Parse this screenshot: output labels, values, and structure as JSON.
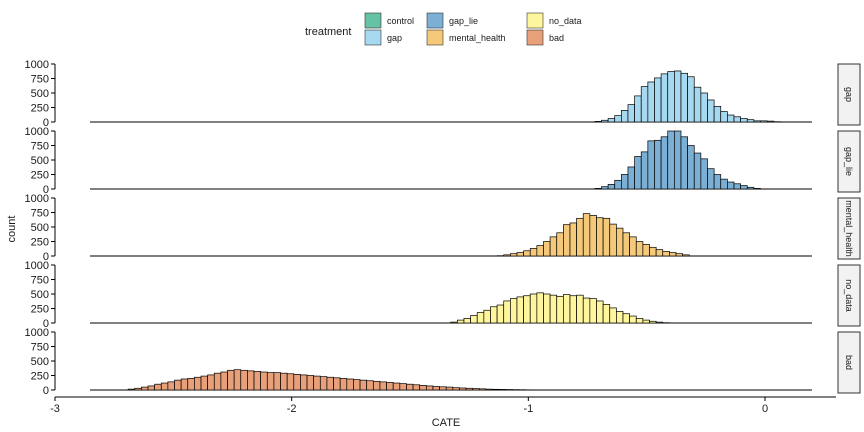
{
  "chart_data": {
    "type": "bar",
    "subtype": "faceted-histogram",
    "title": "",
    "xlabel": "CATE",
    "ylabel": "count",
    "xlim": [
      -3,
      0.3
    ],
    "ylim": [
      0,
      1000
    ],
    "x_ticks": [
      "-3",
      "-2",
      "-1",
      "0"
    ],
    "y_ticks": [
      "0",
      "250",
      "500",
      "750",
      "1000"
    ],
    "grid": false,
    "legend": {
      "title": "treatment",
      "placement": "top",
      "entries": [
        {
          "label": "control",
          "color": "#66c2a5"
        },
        {
          "label": "gap",
          "color": "#a6d8f0"
        },
        {
          "label": "gap_lie",
          "color": "#7bafd4"
        },
        {
          "label": "mental_health",
          "color": "#f5c97a"
        },
        {
          "label": "no_data",
          "color": "#fff59d"
        },
        {
          "label": "bad",
          "color": "#e8a07a"
        }
      ]
    },
    "bin_width": 0.028,
    "facets": [
      {
        "label": "gap",
        "color": "#a6d8f0",
        "series": [
          {
            "x": -0.705,
            "y": 10
          },
          {
            "x": -0.677,
            "y": 30
          },
          {
            "x": -0.649,
            "y": 60
          },
          {
            "x": -0.621,
            "y": 110
          },
          {
            "x": -0.593,
            "y": 200
          },
          {
            "x": -0.565,
            "y": 300
          },
          {
            "x": -0.537,
            "y": 450
          },
          {
            "x": -0.509,
            "y": 610
          },
          {
            "x": -0.481,
            "y": 690
          },
          {
            "x": -0.453,
            "y": 760
          },
          {
            "x": -0.425,
            "y": 830
          },
          {
            "x": -0.397,
            "y": 870
          },
          {
            "x": -0.369,
            "y": 880
          },
          {
            "x": -0.341,
            "y": 840
          },
          {
            "x": -0.313,
            "y": 780
          },
          {
            "x": -0.285,
            "y": 600
          },
          {
            "x": -0.257,
            "y": 500
          },
          {
            "x": -0.229,
            "y": 380
          },
          {
            "x": -0.201,
            "y": 270
          },
          {
            "x": -0.173,
            "y": 180
          },
          {
            "x": -0.145,
            "y": 120
          },
          {
            "x": -0.117,
            "y": 90
          },
          {
            "x": -0.089,
            "y": 60
          },
          {
            "x": -0.061,
            "y": 40
          },
          {
            "x": -0.033,
            "y": 20
          },
          {
            "x": -0.005,
            "y": 20
          },
          {
            "x": 0.023,
            "y": 15
          },
          {
            "x": 0.051,
            "y": 5
          }
        ]
      },
      {
        "label": "gap_lie",
        "color": "#7bafd4",
        "series": [
          {
            "x": -0.705,
            "y": 10
          },
          {
            "x": -0.677,
            "y": 40
          },
          {
            "x": -0.649,
            "y": 80
          },
          {
            "x": -0.621,
            "y": 150
          },
          {
            "x": -0.593,
            "y": 250
          },
          {
            "x": -0.565,
            "y": 380
          },
          {
            "x": -0.537,
            "y": 560
          },
          {
            "x": -0.509,
            "y": 640
          },
          {
            "x": -0.481,
            "y": 830
          },
          {
            "x": -0.453,
            "y": 840
          },
          {
            "x": -0.425,
            "y": 900
          },
          {
            "x": -0.397,
            "y": 1000
          },
          {
            "x": -0.369,
            "y": 1000
          },
          {
            "x": -0.341,
            "y": 900
          },
          {
            "x": -0.313,
            "y": 750
          },
          {
            "x": -0.285,
            "y": 620
          },
          {
            "x": -0.257,
            "y": 520
          },
          {
            "x": -0.229,
            "y": 350
          },
          {
            "x": -0.201,
            "y": 250
          },
          {
            "x": -0.173,
            "y": 170
          },
          {
            "x": -0.145,
            "y": 120
          },
          {
            "x": -0.117,
            "y": 90
          },
          {
            "x": -0.089,
            "y": 60
          },
          {
            "x": -0.061,
            "y": 30
          },
          {
            "x": -0.033,
            "y": 10
          }
        ]
      },
      {
        "label": "mental_health",
        "color": "#f5c97a",
        "series": [
          {
            "x": -1.118,
            "y": 5
          },
          {
            "x": -1.09,
            "y": 20
          },
          {
            "x": -1.062,
            "y": 40
          },
          {
            "x": -1.034,
            "y": 60
          },
          {
            "x": -1.006,
            "y": 90
          },
          {
            "x": -0.978,
            "y": 130
          },
          {
            "x": -0.95,
            "y": 180
          },
          {
            "x": -0.922,
            "y": 250
          },
          {
            "x": -0.894,
            "y": 330
          },
          {
            "x": -0.866,
            "y": 400
          },
          {
            "x": -0.838,
            "y": 540
          },
          {
            "x": -0.81,
            "y": 570
          },
          {
            "x": -0.782,
            "y": 650
          },
          {
            "x": -0.754,
            "y": 730
          },
          {
            "x": -0.726,
            "y": 700
          },
          {
            "x": -0.698,
            "y": 660
          },
          {
            "x": -0.67,
            "y": 650
          },
          {
            "x": -0.642,
            "y": 550
          },
          {
            "x": -0.614,
            "y": 480
          },
          {
            "x": -0.586,
            "y": 400
          },
          {
            "x": -0.558,
            "y": 330
          },
          {
            "x": -0.53,
            "y": 250
          },
          {
            "x": -0.502,
            "y": 200
          },
          {
            "x": -0.474,
            "y": 150
          },
          {
            "x": -0.446,
            "y": 110
          },
          {
            "x": -0.418,
            "y": 80
          },
          {
            "x": -0.39,
            "y": 60
          },
          {
            "x": -0.362,
            "y": 40
          },
          {
            "x": -0.334,
            "y": 20
          }
        ]
      },
      {
        "label": "no_data",
        "color": "#fff59d",
        "series": [
          {
            "x": -1.314,
            "y": 15
          },
          {
            "x": -1.286,
            "y": 50
          },
          {
            "x": -1.258,
            "y": 80
          },
          {
            "x": -1.23,
            "y": 130
          },
          {
            "x": -1.202,
            "y": 180
          },
          {
            "x": -1.174,
            "y": 220
          },
          {
            "x": -1.146,
            "y": 280
          },
          {
            "x": -1.118,
            "y": 310
          },
          {
            "x": -1.09,
            "y": 380
          },
          {
            "x": -1.062,
            "y": 420
          },
          {
            "x": -1.034,
            "y": 450
          },
          {
            "x": -1.006,
            "y": 470
          },
          {
            "x": -0.978,
            "y": 500
          },
          {
            "x": -0.95,
            "y": 520
          },
          {
            "x": -0.922,
            "y": 500
          },
          {
            "x": -0.894,
            "y": 480
          },
          {
            "x": -0.866,
            "y": 460
          },
          {
            "x": -0.838,
            "y": 490
          },
          {
            "x": -0.81,
            "y": 470
          },
          {
            "x": -0.782,
            "y": 480
          },
          {
            "x": -0.754,
            "y": 430
          },
          {
            "x": -0.726,
            "y": 420
          },
          {
            "x": -0.698,
            "y": 380
          },
          {
            "x": -0.67,
            "y": 320
          },
          {
            "x": -0.642,
            "y": 260
          },
          {
            "x": -0.614,
            "y": 200
          },
          {
            "x": -0.586,
            "y": 160
          },
          {
            "x": -0.558,
            "y": 120
          },
          {
            "x": -0.53,
            "y": 80
          },
          {
            "x": -0.502,
            "y": 50
          },
          {
            "x": -0.474,
            "y": 30
          },
          {
            "x": -0.446,
            "y": 15
          },
          {
            "x": -0.418,
            "y": 5
          }
        ]
      },
      {
        "label": "bad",
        "color": "#e8a07a",
        "series": [
          {
            "x": -2.677,
            "y": 15
          },
          {
            "x": -2.649,
            "y": 30
          },
          {
            "x": -2.621,
            "y": 50
          },
          {
            "x": -2.593,
            "y": 70
          },
          {
            "x": -2.565,
            "y": 100
          },
          {
            "x": -2.537,
            "y": 120
          },
          {
            "x": -2.509,
            "y": 140
          },
          {
            "x": -2.481,
            "y": 170
          },
          {
            "x": -2.453,
            "y": 190
          },
          {
            "x": -2.425,
            "y": 200
          },
          {
            "x": -2.397,
            "y": 220
          },
          {
            "x": -2.369,
            "y": 240
          },
          {
            "x": -2.341,
            "y": 260
          },
          {
            "x": -2.313,
            "y": 290
          },
          {
            "x": -2.285,
            "y": 310
          },
          {
            "x": -2.257,
            "y": 340
          },
          {
            "x": -2.229,
            "y": 350
          },
          {
            "x": -2.201,
            "y": 340
          },
          {
            "x": -2.173,
            "y": 330
          },
          {
            "x": -2.145,
            "y": 320
          },
          {
            "x": -2.117,
            "y": 310
          },
          {
            "x": -2.089,
            "y": 300
          },
          {
            "x": -2.061,
            "y": 300
          },
          {
            "x": -2.033,
            "y": 290
          },
          {
            "x": -2.005,
            "y": 280
          },
          {
            "x": -1.977,
            "y": 270
          },
          {
            "x": -1.949,
            "y": 260
          },
          {
            "x": -1.921,
            "y": 250
          },
          {
            "x": -1.893,
            "y": 240
          },
          {
            "x": -1.865,
            "y": 230
          },
          {
            "x": -1.837,
            "y": 220
          },
          {
            "x": -1.809,
            "y": 210
          },
          {
            "x": -1.781,
            "y": 200
          },
          {
            "x": -1.753,
            "y": 190
          },
          {
            "x": -1.725,
            "y": 180
          },
          {
            "x": -1.697,
            "y": 170
          },
          {
            "x": -1.669,
            "y": 160
          },
          {
            "x": -1.641,
            "y": 150
          },
          {
            "x": -1.613,
            "y": 140
          },
          {
            "x": -1.585,
            "y": 130
          },
          {
            "x": -1.557,
            "y": 120
          },
          {
            "x": -1.529,
            "y": 110
          },
          {
            "x": -1.501,
            "y": 100
          },
          {
            "x": -1.473,
            "y": 90
          },
          {
            "x": -1.445,
            "y": 80
          },
          {
            "x": -1.417,
            "y": 70
          },
          {
            "x": -1.389,
            "y": 60
          },
          {
            "x": -1.361,
            "y": 55
          },
          {
            "x": -1.333,
            "y": 50
          },
          {
            "x": -1.305,
            "y": 40
          },
          {
            "x": -1.277,
            "y": 35
          },
          {
            "x": -1.249,
            "y": 30
          },
          {
            "x": -1.221,
            "y": 25
          },
          {
            "x": -1.193,
            "y": 20
          },
          {
            "x": -1.165,
            "y": 15
          },
          {
            "x": -1.137,
            "y": 12
          },
          {
            "x": -1.109,
            "y": 10
          },
          {
            "x": -1.081,
            "y": 8
          },
          {
            "x": -1.053,
            "y": 6
          },
          {
            "x": -1.025,
            "y": 5
          },
          {
            "x": -0.997,
            "y": 3
          },
          {
            "x": -0.969,
            "y": 2
          },
          {
            "x": -0.941,
            "y": 2
          }
        ]
      }
    ]
  }
}
